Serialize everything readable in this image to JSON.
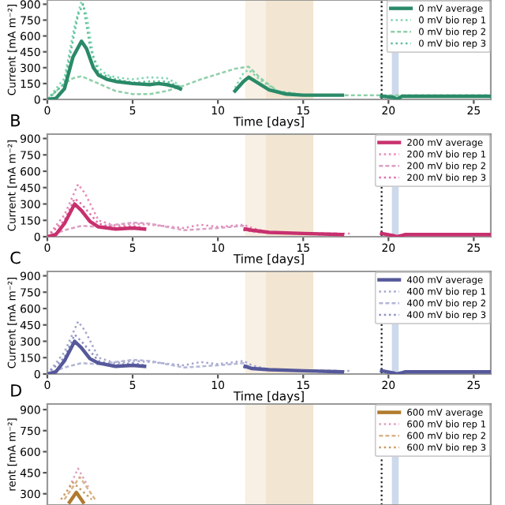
{
  "chart_data": [
    {
      "type": "line",
      "xlabel": "Time [days]",
      "ylabel": "Current [mA m⁻²]",
      "xlim": [
        0,
        26
      ],
      "xticks": [
        0,
        5,
        10,
        15,
        20,
        25
      ],
      "ylim": [
        0,
        940
      ],
      "yticks": [
        0,
        150,
        300,
        450,
        600,
        750,
        900
      ],
      "legend": "top right",
      "grid": false,
      "ref_lines": [
        {
          "axis": "x",
          "value": 19.6,
          "color": "#222222",
          "line_style": "dotted"
        }
      ],
      "bands": [
        {
          "axis": "x",
          "from": 11.6,
          "to": 12.8,
          "color": "#f8f0e4"
        },
        {
          "axis": "x",
          "from": 12.8,
          "to": 15.6,
          "color": "#f2e6d2"
        },
        {
          "axis": "x",
          "from": 20.2,
          "to": 20.6,
          "color": "#cdd9ec"
        }
      ],
      "series": [
        {
          "name": "0 mV average",
          "color": "#2a8a68",
          "line_style": "solid",
          "x": [
            0,
            0.5,
            1,
            1.5,
            2,
            2.3,
            2.7,
            3,
            3.5,
            4,
            5,
            6,
            6.5,
            7,
            7.5,
            7.8,
            null,
            11,
            11.5,
            11.8,
            12.2,
            13,
            14,
            15,
            17.3,
            null,
            19.6,
            20.3,
            20.5,
            20.8,
            26
          ],
          "values": [
            0,
            10,
            100,
            400,
            550,
            480,
            300,
            230,
            190,
            170,
            150,
            140,
            150,
            140,
            120,
            100,
            null,
            80,
            170,
            210,
            170,
            90,
            50,
            40,
            40,
            null,
            30,
            20,
            0,
            30,
            30
          ]
        },
        {
          "name": "0 mV bio rep 1",
          "color": "#7fd6b0",
          "line_style": "dotted",
          "x": [
            0,
            1,
            1.6,
            2,
            2.3,
            2.7,
            3,
            3.5,
            4,
            5,
            6,
            7,
            7.5,
            7.8,
            null,
            11,
            11.5,
            11.8,
            12.5,
            13.5,
            15,
            17
          ],
          "values": [
            0,
            200,
            700,
            930,
            800,
            400,
            300,
            230,
            210,
            190,
            210,
            200,
            160,
            120,
            null,
            110,
            250,
            280,
            180,
            80,
            40,
            40
          ]
        },
        {
          "name": "0 mV bio rep 2",
          "color": "#8fcfa8",
          "line_style": "dashed",
          "x": [
            0,
            1,
            1.5,
            2,
            3,
            4,
            5,
            6,
            7,
            8,
            9,
            10,
            11,
            11.8,
            12.5,
            13.5,
            15,
            18,
            20,
            26
          ],
          "values": [
            0,
            150,
            200,
            220,
            150,
            80,
            50,
            50,
            80,
            130,
            190,
            240,
            290,
            310,
            200,
            80,
            40,
            40,
            40,
            40
          ]
        },
        {
          "name": "0 mV bio rep 3",
          "color": "#5fbf98",
          "line_style": "dotted",
          "x": [
            0,
            1,
            1.8,
            2.1,
            2.5,
            3,
            4,
            5,
            6,
            7,
            7.8,
            null,
            11,
            11.8,
            13,
            15,
            17
          ],
          "values": [
            0,
            150,
            800,
            900,
            500,
            250,
            190,
            160,
            170,
            170,
            120,
            null,
            90,
            220,
            90,
            40,
            40
          ]
        }
      ]
    },
    {
      "type": "line",
      "xlabel": "Time [days]",
      "ylabel": "Current [mA m⁻²]",
      "xlim": [
        0,
        26
      ],
      "xticks": [
        0,
        5,
        10,
        15,
        20,
        25
      ],
      "ylim": [
        0,
        940
      ],
      "yticks": [
        0,
        150,
        300,
        450,
        600,
        750,
        900
      ],
      "legend": "top right",
      "grid": false,
      "annotations": [
        "B"
      ],
      "ref_lines": [
        {
          "axis": "x",
          "value": 19.6,
          "color": "#222222",
          "line_style": "dotted"
        }
      ],
      "bands": [
        {
          "axis": "x",
          "from": 11.6,
          "to": 12.8,
          "color": "#f8f0e4"
        },
        {
          "axis": "x",
          "from": 12.8,
          "to": 15.6,
          "color": "#f2e6d2"
        },
        {
          "axis": "x",
          "from": 20.2,
          "to": 20.6,
          "color": "#cdd9ec"
        }
      ],
      "series": [
        {
          "name": "200 mV average",
          "color": "#c8306e",
          "line_style": "solid",
          "x": [
            0,
            0.5,
            1,
            1.6,
            2,
            2.5,
            3,
            4,
            5,
            5.7,
            null,
            11.6,
            12,
            13,
            15,
            17.3,
            null,
            19.6,
            20.3,
            20.5,
            21,
            26
          ],
          "values": [
            0,
            20,
            120,
            300,
            240,
            140,
            90,
            70,
            80,
            70,
            null,
            70,
            60,
            40,
            30,
            20,
            null,
            30,
            10,
            0,
            20,
            20
          ]
        },
        {
          "name": "200 mV bio rep 1",
          "color": "#e58ab8",
          "line_style": "dotted",
          "x": [
            0,
            1,
            1.8,
            2.2,
            3,
            4,
            5,
            6,
            8,
            9,
            10,
            11.5,
            12,
            13,
            16,
            17.8
          ],
          "values": [
            0,
            200,
            480,
            400,
            150,
            100,
            120,
            110,
            80,
            110,
            90,
            110,
            80,
            40,
            20,
            30
          ]
        },
        {
          "name": "200 mV bio rep 2",
          "color": "#d9a0c4",
          "line_style": "dashed",
          "x": [
            0,
            1,
            2,
            3,
            4,
            5,
            6,
            7,
            8,
            10,
            11.5,
            12,
            14,
            17
          ],
          "values": [
            0,
            60,
            100,
            90,
            110,
            130,
            120,
            90,
            60,
            80,
            100,
            50,
            30,
            30
          ]
        },
        {
          "name": "200 mV bio rep 3",
          "color": "#e070a8",
          "line_style": "dotted",
          "x": [
            0,
            1,
            1.6,
            2,
            3,
            4,
            5,
            5.7,
            null,
            11.5,
            12.5,
            15,
            17.5
          ],
          "values": [
            0,
            150,
            350,
            300,
            120,
            80,
            100,
            80,
            null,
            60,
            40,
            30,
            20
          ]
        }
      ]
    },
    {
      "type": "line",
      "xlabel": "Time [days]",
      "ylabel": "Current [mA m⁻²]",
      "xlim": [
        0,
        26
      ],
      "xticks": [
        0,
        5,
        10,
        15,
        20,
        25
      ],
      "ylim": [
        0,
        940
      ],
      "yticks": [
        0,
        150,
        300,
        450,
        600,
        750,
        900
      ],
      "legend": "top right",
      "grid": false,
      "annotations": [
        "C"
      ],
      "ref_lines": [
        {
          "axis": "x",
          "value": 19.6,
          "color": "#222222",
          "line_style": "dotted"
        }
      ],
      "bands": [
        {
          "axis": "x",
          "from": 11.6,
          "to": 12.8,
          "color": "#f8f0e4"
        },
        {
          "axis": "x",
          "from": 12.8,
          "to": 15.6,
          "color": "#f2e6d2"
        },
        {
          "axis": "x",
          "from": 20.2,
          "to": 20.6,
          "color": "#cdd9ec"
        }
      ],
      "series": [
        {
          "name": "400 mV average",
          "color": "#55589a",
          "line_style": "solid",
          "x": [
            0,
            0.5,
            1,
            1.6,
            2,
            2.5,
            3,
            4,
            5,
            5.7,
            null,
            11.6,
            12,
            13,
            15,
            17.3,
            null,
            19.6,
            20.3,
            20.5,
            21,
            26
          ],
          "values": [
            0,
            20,
            120,
            300,
            240,
            140,
            100,
            70,
            80,
            70,
            null,
            70,
            50,
            40,
            30,
            20,
            null,
            30,
            10,
            0,
            20,
            20
          ]
        },
        {
          "name": "400 mV bio rep 1",
          "color": "#a3a6cc",
          "line_style": "dotted",
          "x": [
            0,
            1,
            1.8,
            2.2,
            3,
            4,
            5,
            6,
            8,
            9,
            10,
            11.5,
            12,
            13,
            16,
            17.8
          ],
          "values": [
            0,
            200,
            480,
            400,
            150,
            100,
            120,
            110,
            80,
            110,
            90,
            120,
            80,
            40,
            20,
            30
          ]
        },
        {
          "name": "400 mV bio rep 2",
          "color": "#b4b6d6",
          "line_style": "dashed",
          "x": [
            0,
            1,
            2,
            3,
            4,
            5,
            6,
            7,
            8,
            10,
            11.5,
            12,
            14,
            17
          ],
          "values": [
            0,
            60,
            100,
            90,
            110,
            130,
            120,
            90,
            60,
            80,
            100,
            50,
            30,
            30
          ]
        },
        {
          "name": "400 mV bio rep 3",
          "color": "#8c90c0",
          "line_style": "dotted",
          "x": [
            0,
            1,
            1.6,
            2,
            3,
            4,
            5,
            5.7,
            null,
            11.5,
            12.5,
            15,
            17.5
          ],
          "values": [
            0,
            150,
            360,
            300,
            120,
            80,
            100,
            80,
            null,
            60,
            40,
            30,
            20
          ]
        }
      ]
    },
    {
      "type": "line",
      "ylabel": "rent [mA m⁻²]",
      "xlim": [
        0,
        26
      ],
      "ylim": [
        220,
        940
      ],
      "yticks": [
        300,
        450,
        600,
        750,
        900
      ],
      "tick_labels": "y",
      "legend": "top right",
      "grid": false,
      "annotations": [
        "D"
      ],
      "ref_lines": [
        {
          "axis": "x",
          "value": 19.6,
          "color": "#222222",
          "line_style": "dotted"
        }
      ],
      "bands": [
        {
          "axis": "x",
          "from": 11.6,
          "to": 12.8,
          "color": "#f8f0e4"
        },
        {
          "axis": "x",
          "from": 12.8,
          "to": 15.6,
          "color": "#f2e6d2"
        },
        {
          "axis": "x",
          "from": 20.2,
          "to": 20.6,
          "color": "#cdd9ec"
        }
      ],
      "series": [
        {
          "name": "600 mV average",
          "color": "#b07a2e",
          "line_style": "solid",
          "x": [
            1.3,
            1.7,
            2.1
          ],
          "values": [
            240,
            310,
            240
          ]
        },
        {
          "name": "600 mV bio rep 1",
          "color": "#e0a0c0",
          "line_style": "dotted",
          "x": [
            1.3,
            1.8,
            2.4
          ],
          "values": [
            350,
            480,
            350
          ]
        },
        {
          "name": "600 mV bio rep 2",
          "color": "#d8b48a",
          "line_style": "dashed",
          "x": [
            1.0,
            1.9,
            2.8
          ],
          "values": [
            260,
            420,
            260
          ]
        },
        {
          "name": "600 mV bio rep 3",
          "color": "#c89a60",
          "line_style": "dotted",
          "x": [
            0.8,
            1.5,
            2.6
          ],
          "values": [
            260,
            380,
            260
          ]
        }
      ]
    }
  ]
}
